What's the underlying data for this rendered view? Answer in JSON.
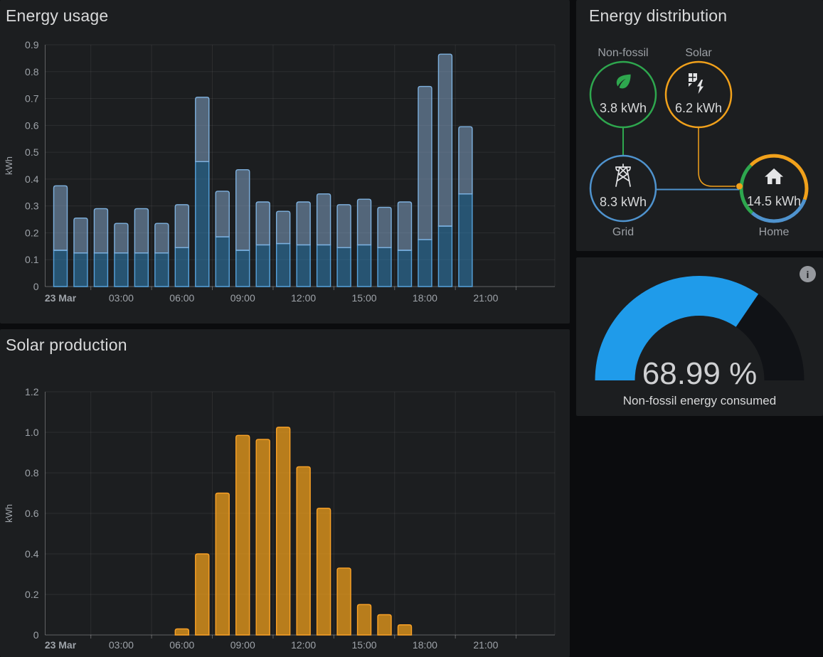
{
  "dashboard": {
    "background": "#0B0C0E",
    "panel_background": "#1C1E20"
  },
  "panels": {
    "energy_usage": {
      "title": "Energy usage"
    },
    "solar_production": {
      "title": "Solar production"
    },
    "energy_distribution": {
      "title": "Energy distribution",
      "nodes": {
        "non_fossil": {
          "label": "Non-fossil",
          "value": "3.8 kWh",
          "color": "#2EA74E"
        },
        "solar": {
          "label": "Solar",
          "value": "6.2 kWh",
          "color": "#F1A11B"
        },
        "grid": {
          "label": "Grid",
          "value": "8.3 kWh",
          "color": "#4F93CE",
          "value_color": "#5C9FE0"
        },
        "home": {
          "label": "Home",
          "value": "14.5 kWh",
          "ring_segments": {
            "solar_pct": 43,
            "fossil_grid_pct": 31,
            "non_fossil_pct": 26
          }
        }
      }
    },
    "non_fossil_gauge": {
      "value_text": "68.99 %",
      "percent": 68.99,
      "label": "Non-fossil energy consumed",
      "color": "#1F9BEA",
      "empty_color": "#101216",
      "info_icon": "i"
    }
  },
  "chart_data": [
    {
      "type": "bar",
      "stacked": true,
      "title": "Energy usage",
      "xlabel": "",
      "ylabel": "kWh",
      "ylim": [
        0,
        0.9
      ],
      "yticks": [
        "0",
        "0.1",
        "0.2",
        "0.3",
        "0.4",
        "0.5",
        "0.6",
        "0.7",
        "0.8",
        "0.9"
      ],
      "hours": [
        0,
        1,
        2,
        3,
        4,
        5,
        6,
        7,
        8,
        9,
        10,
        11,
        12,
        13,
        14,
        15,
        16,
        17,
        18,
        19,
        20
      ],
      "xticklabels": [
        "23 Mar",
        "03:00",
        "06:00",
        "09:00",
        "12:00",
        "15:00",
        "18:00",
        "21:00"
      ],
      "grid_on": true,
      "legend": false,
      "series": [
        {
          "name": "stack-lower",
          "fill": "rgba(49,130,182,0.55)",
          "stroke": "#57A3DD",
          "values": [
            0.135,
            0.125,
            0.125,
            0.125,
            0.125,
            0.125,
            0.145,
            0.465,
            0.185,
            0.135,
            0.155,
            0.16,
            0.155,
            0.155,
            0.145,
            0.155,
            0.145,
            0.135,
            0.175,
            0.225,
            0.345
          ]
        },
        {
          "name": "stack-upper",
          "fill": "rgba(137,173,212,0.5)",
          "stroke": "#7EB1DF",
          "values": [
            0.24,
            0.13,
            0.165,
            0.11,
            0.165,
            0.11,
            0.16,
            0.24,
            0.17,
            0.3,
            0.16,
            0.12,
            0.16,
            0.19,
            0.16,
            0.17,
            0.15,
            0.18,
            0.57,
            0.64,
            0.25
          ]
        }
      ]
    },
    {
      "type": "bar",
      "stacked": false,
      "title": "Solar production",
      "xlabel": "",
      "ylabel": "kWh",
      "ylim": [
        0,
        1.2
      ],
      "yticks": [
        "0",
        "0.2",
        "0.4",
        "0.6",
        "0.8",
        "1.0",
        "1.2"
      ],
      "hours": [
        6,
        7,
        8,
        9,
        10,
        11,
        12,
        13,
        14,
        15,
        16,
        17
      ],
      "xticklabels": [
        "23 Mar",
        "03:00",
        "06:00",
        "09:00",
        "12:00",
        "15:00",
        "18:00",
        "21:00"
      ],
      "grid_on": true,
      "legend": false,
      "series": [
        {
          "name": "solar",
          "fill": "rgba(245,162,26,0.72)",
          "stroke": "#FBA226",
          "values": [
            0.03,
            0.4,
            0.7,
            0.985,
            0.965,
            1.025,
            0.83,
            0.625,
            0.33,
            0.15,
            0.1,
            0.05
          ]
        }
      ]
    }
  ]
}
